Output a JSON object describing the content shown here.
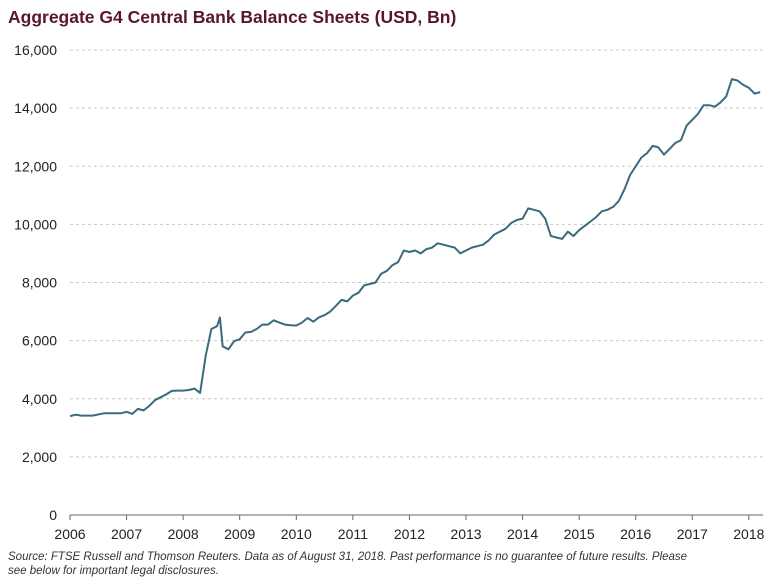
{
  "title": "Aggregate G4 Central Bank Balance Sheets (USD, Bn)",
  "source_note": "Source: FTSE Russell and Thomson Reuters. Data as of August 31, 2018. Past performance is no guarantee of future results. Please see below for important legal disclosures.",
  "colors": {
    "line": "#3b6a7f",
    "title": "#5a1530",
    "grid": "#c8c8c8"
  },
  "chart_data": {
    "type": "line",
    "title": "Aggregate G4 Central Bank Balance Sheets (USD, Bn)",
    "xlabel": "",
    "ylabel": "",
    "xlim": [
      2006,
      2018.25
    ],
    "ylim": [
      0,
      16000
    ],
    "x_ticks": [
      "2006",
      "2007",
      "2008",
      "2009",
      "2010",
      "2011",
      "2012",
      "2013",
      "2014",
      "2015",
      "2016",
      "2017",
      "2018"
    ],
    "y_ticks": [
      "0",
      "2,000",
      "4,000",
      "6,000",
      "8,000",
      "10,000",
      "12,000",
      "14,000",
      "16,000"
    ],
    "y_tick_values": [
      0,
      2000,
      4000,
      6000,
      8000,
      10000,
      12000,
      14000,
      16000
    ],
    "grid": "horizontal-dashed",
    "legend": "none",
    "series": [
      {
        "x": [
          2006.0,
          2006.1,
          2006.2,
          2006.4,
          2006.6,
          2006.8,
          2006.9,
          2007.0,
          2007.1,
          2007.2,
          2007.3,
          2007.4,
          2007.5,
          2007.6,
          2007.7,
          2007.8,
          2007.9,
          2008.0,
          2008.1,
          2008.2,
          2008.3,
          2008.4,
          2008.5,
          2008.6,
          2008.65,
          2008.7,
          2008.8,
          2008.9,
          2009.0,
          2009.1,
          2009.2,
          2009.3,
          2009.4,
          2009.5,
          2009.6,
          2009.7,
          2009.8,
          2009.9,
          2010.0,
          2010.1,
          2010.2,
          2010.3,
          2010.4,
          2010.5,
          2010.6,
          2010.7,
          2010.8,
          2010.9,
          2011.0,
          2011.1,
          2011.2,
          2011.3,
          2011.4,
          2011.5,
          2011.6,
          2011.7,
          2011.8,
          2011.9,
          2012.0,
          2012.1,
          2012.2,
          2012.3,
          2012.4,
          2012.5,
          2012.6,
          2012.7,
          2012.8,
          2012.9,
          2013.0,
          2013.1,
          2013.2,
          2013.3,
          2013.4,
          2013.5,
          2013.6,
          2013.7,
          2013.8,
          2013.9,
          2014.0,
          2014.1,
          2014.2,
          2014.3,
          2014.4,
          2014.5,
          2014.6,
          2014.7,
          2014.8,
          2014.9,
          2015.0,
          2015.1,
          2015.2,
          2015.3,
          2015.4,
          2015.5,
          2015.6,
          2015.7,
          2015.8,
          2015.9,
          2016.0,
          2016.1,
          2016.2,
          2016.3,
          2016.4,
          2016.5,
          2016.6,
          2016.7,
          2016.8,
          2016.9,
          2017.0,
          2017.1,
          2017.2,
          2017.3,
          2017.4,
          2017.5,
          2017.6,
          2017.7,
          2017.8,
          2017.9,
          2018.0,
          2018.1,
          2018.2
        ],
        "values": [
          3400,
          3450,
          3420,
          3420,
          3500,
          3500,
          3500,
          3550,
          3480,
          3650,
          3600,
          3750,
          3950,
          4050,
          4150,
          4270,
          4280,
          4280,
          4300,
          4350,
          4200,
          5500,
          6400,
          6500,
          6800,
          5800,
          5700,
          5980,
          6050,
          6280,
          6300,
          6400,
          6550,
          6550,
          6700,
          6620,
          6550,
          6530,
          6520,
          6620,
          6780,
          6650,
          6800,
          6880,
          7000,
          7200,
          7400,
          7350,
          7550,
          7650,
          7900,
          7950,
          8000,
          8300,
          8400,
          8600,
          8700,
          9100,
          9050,
          9100,
          9000,
          9150,
          9200,
          9350,
          9300,
          9250,
          9200,
          9000,
          9100,
          9200,
          9250,
          9300,
          9450,
          9650,
          9750,
          9850,
          10050,
          10150,
          10200,
          10550,
          10500,
          10450,
          10200,
          9600,
          9550,
          9500,
          9750,
          9600,
          9800,
          9950,
          10100,
          10250,
          10450,
          10500,
          10600,
          10800,
          11200,
          11700,
          12000,
          12300,
          12450,
          12700,
          12650,
          12400,
          12600,
          12800,
          12900,
          13400,
          13600,
          13800,
          14100,
          14100,
          14050,
          14200,
          14400,
          15000,
          14950,
          14800,
          14700,
          14500,
          14550
        ]
      }
    ]
  }
}
